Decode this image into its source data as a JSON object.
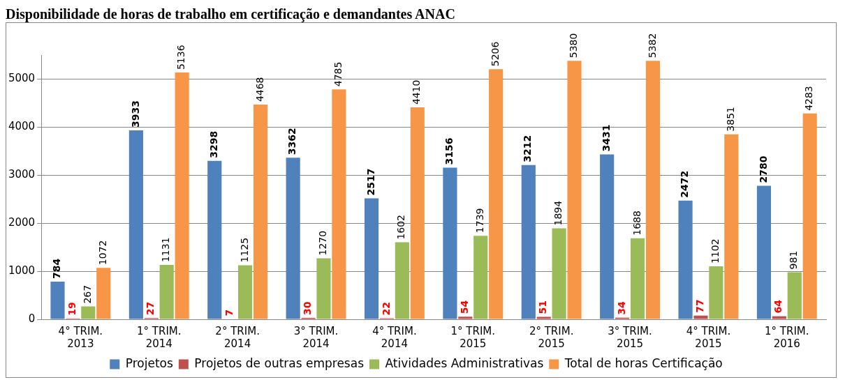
{
  "chart_data": {
    "type": "bar",
    "title": "Disponibilidade de horas de trabalho em certificação e demandantes ANAC",
    "categories": [
      "4° TRIM. 2013",
      "1° TRIM. 2014",
      "2° TRIM. 2014",
      "3° TRIM. 2014",
      "4° TRIM. 2014",
      "1° TRIM. 2015",
      "2° TRIM. 2015",
      "3° TRIM. 2015",
      "4° TRIM. 2015",
      "1° TRIM. 2016"
    ],
    "series": [
      {
        "name": "Projetos",
        "color": "#4f81bd",
        "values": [
          784,
          3933,
          3298,
          3362,
          2517,
          3156,
          3212,
          3431,
          2472,
          2780
        ]
      },
      {
        "name": "Projetos de outras empresas",
        "color": "#c0504d",
        "values": [
          19,
          27,
          7,
          30,
          22,
          54,
          51,
          34,
          77,
          64
        ]
      },
      {
        "name": "Atividades Administrativas",
        "color": "#9bbb59",
        "values": [
          267,
          1131,
          1125,
          1270,
          1602,
          1739,
          1894,
          1688,
          1102,
          981
        ]
      },
      {
        "name": "Total de horas Certificação",
        "color": "#f79646",
        "values": [
          1072,
          5136,
          4468,
          4785,
          4410,
          5206,
          5380,
          5382,
          3851,
          4283
        ]
      }
    ],
    "ylim": [
      0,
      5500
    ],
    "yticks": [
      0,
      1000,
      2000,
      3000,
      4000,
      5000
    ],
    "grid": "y",
    "legend": "bottom",
    "data_labels": true
  }
}
